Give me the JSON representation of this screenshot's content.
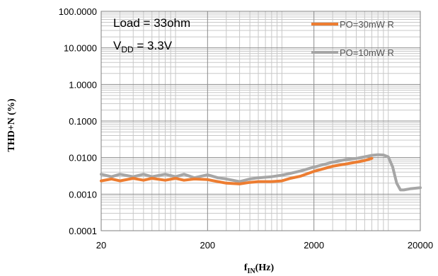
{
  "chart_data": {
    "type": "line",
    "title": "",
    "xlabel": {
      "main": "f",
      "sub": "IN",
      "tail": "(Hz)"
    },
    "ylabel": "THD+N (%)",
    "x_scale": "log",
    "y_scale": "log",
    "xlim": [
      20,
      20000
    ],
    "ylim": [
      0.0001,
      100
    ],
    "x_ticks": [
      20,
      200,
      2000,
      20000
    ],
    "x_tick_labels": [
      "20",
      "200",
      "2000",
      "20000"
    ],
    "y_ticks": [
      0.0001,
      0.001,
      0.01,
      0.1,
      1,
      10,
      100
    ],
    "y_tick_labels": [
      "0.0001",
      "0.0010",
      "0.0100",
      "0.1000",
      "1.0000",
      "10.0000",
      "100.0000"
    ],
    "grid": true,
    "legend_position": "top-right",
    "annotations": {
      "load": "Load = 33ohm",
      "vdd_main": "V",
      "vdd_sub": "DD",
      "vdd_tail": " = 3.3V"
    },
    "series": [
      {
        "name": "PO=30mW  R",
        "color": "#ED7D31",
        "x": [
          20,
          25,
          30,
          40,
          50,
          60,
          80,
          100,
          120,
          150,
          200,
          250,
          300,
          400,
          500,
          600,
          800,
          1000,
          1200,
          1500,
          2000,
          2500,
          3000,
          4000,
          5000,
          6000,
          7000
        ],
        "y": [
          0.0023,
          0.0026,
          0.0023,
          0.0027,
          0.0024,
          0.0027,
          0.0024,
          0.0027,
          0.0024,
          0.0026,
          0.0025,
          0.0022,
          0.002,
          0.0019,
          0.0021,
          0.0022,
          0.0022,
          0.0023,
          0.0027,
          0.0031,
          0.0042,
          0.005,
          0.0058,
          0.0067,
          0.0075,
          0.0083,
          0.0095
        ]
      },
      {
        "name": "PO=10mW  R",
        "color": "#A6A6A6",
        "x": [
          20,
          25,
          30,
          40,
          50,
          60,
          80,
          100,
          120,
          150,
          200,
          250,
          300,
          400,
          500,
          600,
          800,
          1000,
          1200,
          1500,
          2000,
          2500,
          3000,
          4000,
          5000,
          6000,
          7000,
          8000,
          9000,
          10000,
          11000,
          12000,
          13000,
          14000,
          16000,
          20000
        ],
        "y": [
          0.0035,
          0.003,
          0.0035,
          0.003,
          0.0035,
          0.003,
          0.0035,
          0.003,
          0.0035,
          0.0028,
          0.0034,
          0.0028,
          0.0026,
          0.0022,
          0.0026,
          0.0028,
          0.003,
          0.0033,
          0.0037,
          0.0043,
          0.0055,
          0.0065,
          0.0075,
          0.0088,
          0.0095,
          0.0105,
          0.0115,
          0.012,
          0.0118,
          0.0105,
          0.0055,
          0.002,
          0.0013,
          0.0013,
          0.0014,
          0.0015
        ]
      }
    ]
  }
}
